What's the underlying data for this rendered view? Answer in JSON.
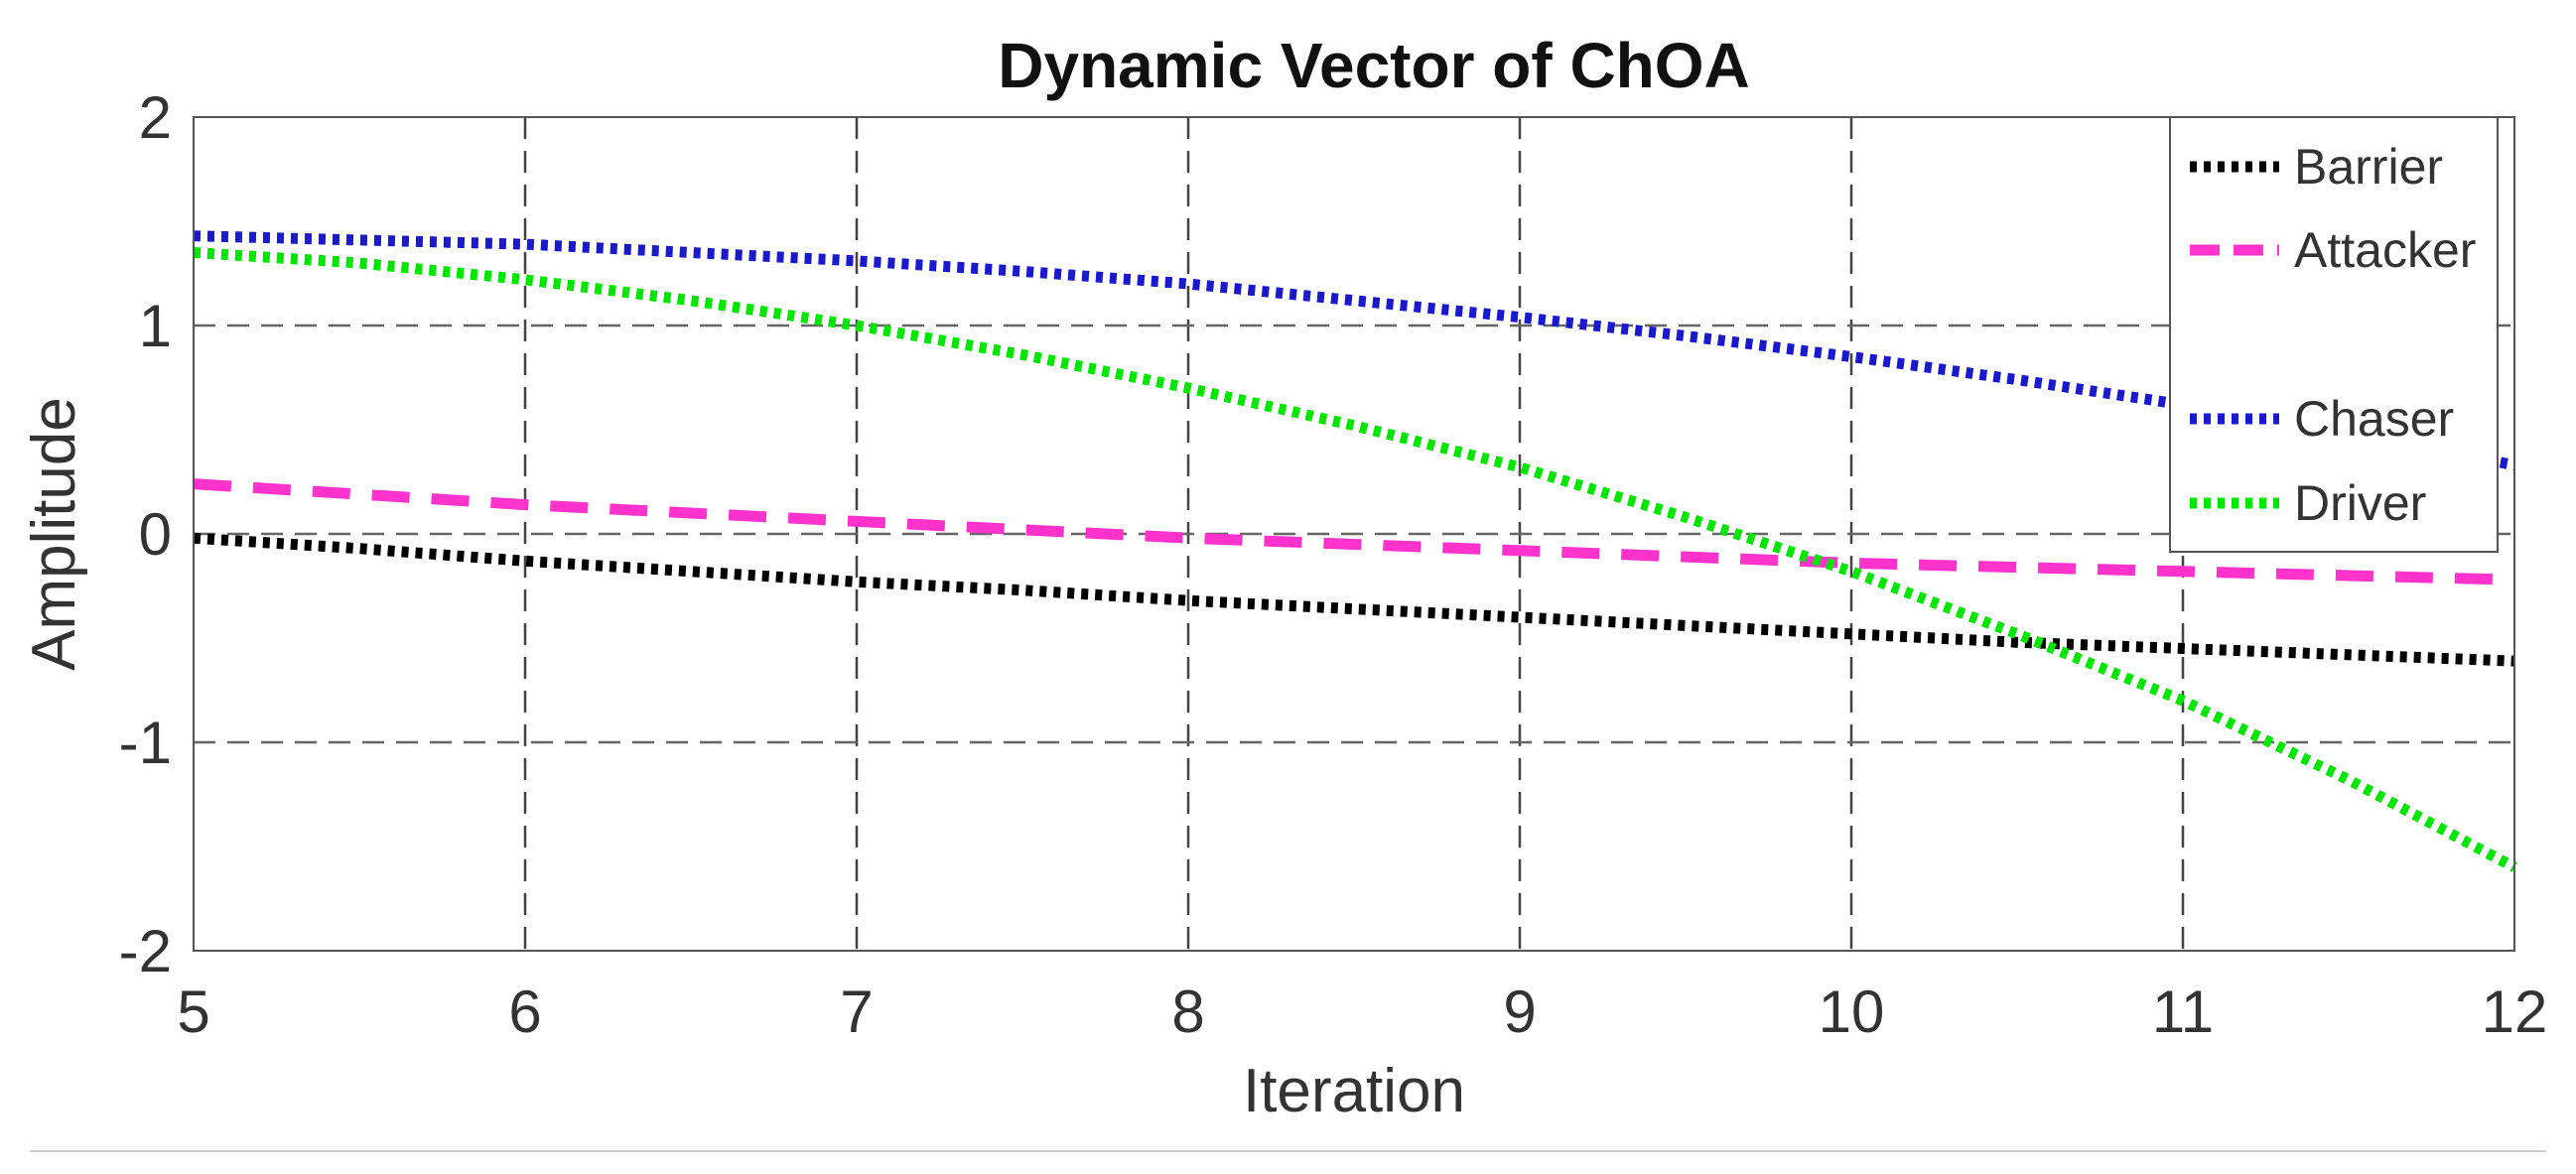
{
  "chart_data": {
    "type": "line",
    "title": "Dynamic Vector of ChOA",
    "xlabel": "Iteration",
    "ylabel": "Amplitude",
    "xlim": [
      5,
      12
    ],
    "ylim": [
      -2,
      2
    ],
    "xticks": [
      5,
      6,
      7,
      8,
      9,
      10,
      11,
      12
    ],
    "yticks": [
      -2,
      -1,
      0,
      1,
      2
    ],
    "grid": true,
    "legend_position": "top-right",
    "x": [
      5,
      5.5,
      6,
      6.5,
      7,
      7.5,
      8,
      8.5,
      9,
      9.5,
      10,
      10.5,
      11,
      11.5,
      12
    ],
    "series": [
      {
        "name": "Barrier",
        "color": "#000000",
        "style": "dotted",
        "values": [
          -0.02,
          -0.07,
          -0.13,
          -0.18,
          -0.23,
          -0.27,
          -0.32,
          -0.36,
          -0.4,
          -0.44,
          -0.48,
          -0.52,
          -0.55,
          -0.58,
          -0.61
        ]
      },
      {
        "name": "Attacker",
        "color": "#ff33cc",
        "style": "dashed",
        "values": [
          0.24,
          0.19,
          0.14,
          0.1,
          0.06,
          0.02,
          -0.02,
          -0.05,
          -0.08,
          -0.11,
          -0.14,
          -0.16,
          -0.18,
          -0.2,
          -0.22
        ]
      },
      {
        "name": "Chaser",
        "color": "#1a1acc",
        "style": "dotted",
        "values": [
          1.43,
          1.41,
          1.39,
          1.35,
          1.31,
          1.26,
          1.2,
          1.12,
          1.04,
          0.95,
          0.85,
          0.74,
          0.62,
          0.48,
          0.33
        ]
      },
      {
        "name": "Driver",
        "color": "#00e600",
        "style": "dotted",
        "values": [
          1.35,
          1.3,
          1.22,
          1.12,
          1.0,
          0.86,
          0.7,
          0.52,
          0.32,
          0.08,
          -0.18,
          -0.48,
          -0.8,
          -1.18,
          -1.6
        ]
      }
    ]
  }
}
